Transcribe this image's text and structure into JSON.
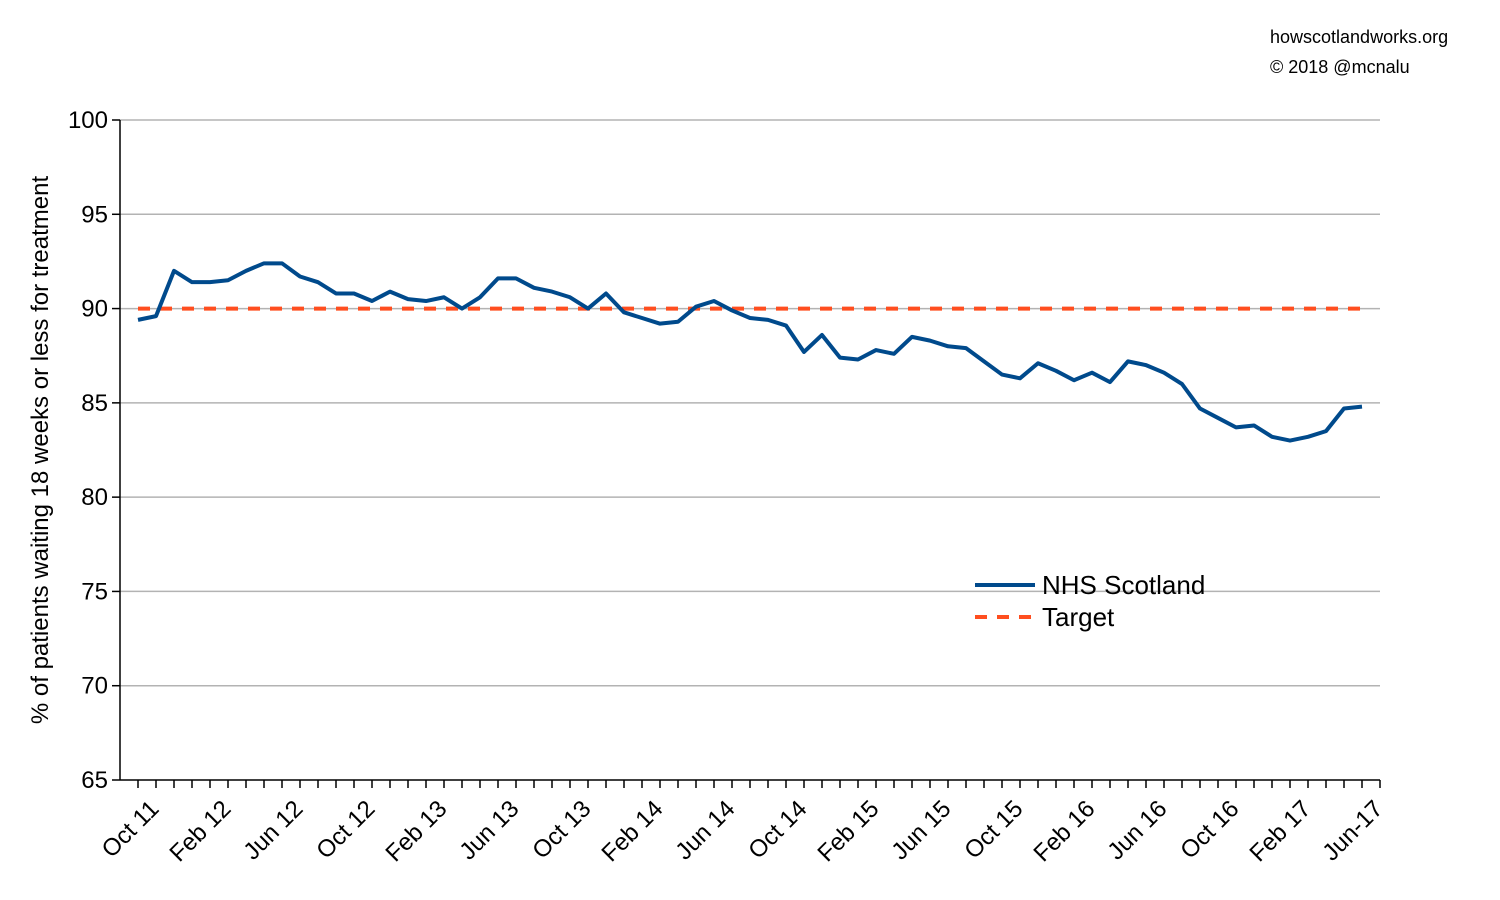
{
  "credit": {
    "site": "howscotlandworks.org",
    "copyright": "© 2018  @mcnalu"
  },
  "chart_data": {
    "type": "line",
    "title": "",
    "xlabel": "",
    "ylabel": "% of patients waiting 18 weeks or less for treatment",
    "ylim": [
      65,
      100
    ],
    "yticks": [
      65,
      70,
      75,
      80,
      85,
      90,
      95,
      100
    ],
    "grid": "horizontal",
    "legend_position": "lower-right",
    "x_tick_labels": [
      "Oct 11",
      "Feb 12",
      "Jun 12",
      "Oct 12",
      "Feb 13",
      "Jun 13",
      "Oct 13",
      "Feb 14",
      "Jun 14",
      "Oct 14",
      "Feb 15",
      "Jun 15",
      "Oct 15",
      "Feb 16",
      "Jun 16",
      "Oct 16",
      "Feb 17",
      "Jun-17"
    ],
    "x": [
      "Oct 11",
      "Nov 11",
      "Dec 11",
      "Jan 12",
      "Feb 12",
      "Mar 12",
      "Apr 12",
      "May 12",
      "Jun 12",
      "Jul 12",
      "Aug 12",
      "Sep 12",
      "Oct 12",
      "Nov 12",
      "Dec 12",
      "Jan 13",
      "Feb 13",
      "Mar 13",
      "Apr 13",
      "May 13",
      "Jun 13",
      "Jul 13",
      "Aug 13",
      "Sep 13",
      "Oct 13",
      "Nov 13",
      "Dec 13",
      "Jan 14",
      "Feb 14",
      "Mar 14",
      "Apr 14",
      "May 14",
      "Jun 14",
      "Jul 14",
      "Aug 14",
      "Sep 14",
      "Oct 14",
      "Nov 14",
      "Dec 14",
      "Jan 15",
      "Feb 15",
      "Mar 15",
      "Apr 15",
      "May 15",
      "Jun 15",
      "Jul 15",
      "Aug 15",
      "Sep 15",
      "Oct 15",
      "Nov 15",
      "Dec 15",
      "Jan 16",
      "Feb 16",
      "Mar 16",
      "Apr 16",
      "May 16",
      "Jun 16",
      "Jul 16",
      "Aug 16",
      "Sep 16",
      "Oct 16",
      "Nov 16",
      "Dec 16",
      "Jan 17",
      "Feb 17",
      "Mar 17",
      "Apr 17",
      "May 17",
      "Jun-17"
    ],
    "series": [
      {
        "name": "NHS Scotland",
        "color": "#004a8c",
        "style": "solid",
        "values": [
          89.4,
          89.6,
          92.0,
          91.4,
          91.4,
          91.5,
          92.0,
          92.4,
          92.4,
          91.7,
          91.4,
          90.8,
          90.8,
          90.4,
          90.9,
          90.5,
          90.4,
          90.6,
          90.0,
          90.6,
          91.6,
          91.6,
          91.1,
          90.9,
          90.6,
          90.0,
          90.8,
          89.8,
          89.5,
          89.2,
          89.3,
          90.1,
          90.4,
          89.9,
          89.5,
          89.4,
          89.1,
          87.7,
          88.6,
          87.4,
          87.3,
          87.8,
          87.6,
          88.5,
          88.3,
          88.0,
          87.9,
          87.2,
          86.5,
          86.3,
          87.1,
          86.7,
          86.2,
          86.6,
          86.1,
          87.2,
          87.0,
          86.6,
          86.0,
          84.7,
          84.2,
          83.7,
          83.8,
          83.2,
          83.0,
          83.2,
          83.5,
          84.7,
          84.8
        ]
      },
      {
        "name": "Target",
        "color": "#ff4e1f",
        "style": "dashed",
        "values": [
          90,
          90,
          90,
          90,
          90,
          90,
          90,
          90,
          90,
          90,
          90,
          90,
          90,
          90,
          90,
          90,
          90,
          90,
          90,
          90,
          90,
          90,
          90,
          90,
          90,
          90,
          90,
          90,
          90,
          90,
          90,
          90,
          90,
          90,
          90,
          90,
          90,
          90,
          90,
          90,
          90,
          90,
          90,
          90,
          90,
          90,
          90,
          90,
          90,
          90,
          90,
          90,
          90,
          90,
          90,
          90,
          90,
          90,
          90,
          90,
          90,
          90,
          90,
          90,
          90,
          90,
          90,
          90,
          90
        ]
      }
    ]
  }
}
